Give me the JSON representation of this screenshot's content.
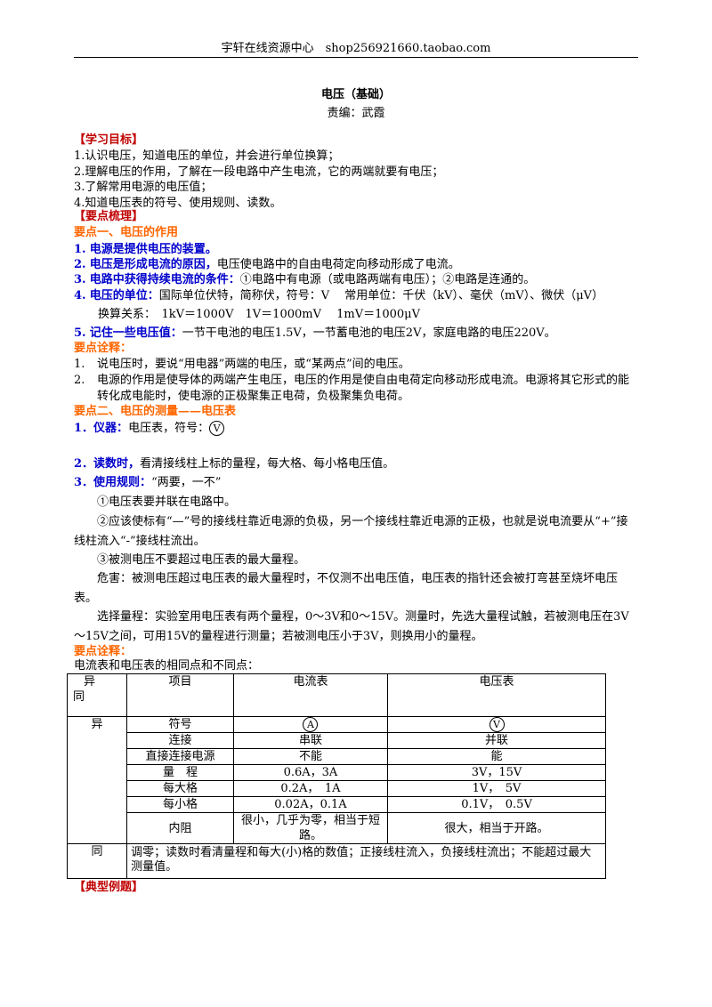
{
  "header": {
    "text": "宇轩在线资源中心　shop256921660.taobao.com"
  },
  "title": "电压（基础）",
  "author": "责编：武霞",
  "goals": {
    "heading": "【学习目标】",
    "items": [
      "1.认识电压，知道电压的单位，并会进行单位换算；",
      "2.理解电压的作用，了解在一段电路中产生电流，它的两端就要有电压；",
      "3.了解常用电源的电压值；",
      "4.知道电压表的符号、使用规则、读数。"
    ]
  },
  "points_heading": "【要点梳理】",
  "point1": {
    "heading": "要点一、电压的作用",
    "items": [
      {
        "num": "1.",
        "label": "电源是提供电压的装置。",
        "text": ""
      },
      {
        "num": "2.",
        "label": "电压是形成电流的原因，",
        "text": "电压使电路中的自由电荷定向移动形成了电流。"
      },
      {
        "num": "3.",
        "label": "电路中获得持续电流的条件：",
        "text": "①电路中有电源（或电路两端有电压）；②电路是连通的。"
      },
      {
        "num": "4.",
        "label": "电压的单位：",
        "text": "国际单位伏特，简称伏，符号：V　 常用单位：千伏（kV）、毫伏（mV）、微伏（μV）"
      },
      {
        "num": "5.",
        "label": "记住一些电压值：",
        "text": "一节干电池的电压1.5V，一节蓄电池的电压2V，家庭电路的电压220V。"
      }
    ],
    "conversion": "换算关系：　1kV＝1000V　1V＝1000mV　 1mV＝1000μV"
  },
  "note1": {
    "heading": "要点诠释：",
    "items": [
      {
        "num": "1.",
        "text": "说电压时，要说“用电器”两端的电压，或“某两点”间的电压。"
      },
      {
        "num": "2.",
        "text": "电源的作用是使导体的两端产生电压，电压的作用是使自由电荷定向移动形成电流。电源将其它形式的能转化成电能时，使电源的正极聚集正电荷，负极聚集负电荷。"
      }
    ]
  },
  "point2": {
    "heading": "要点二、电压的测量——电压表",
    "items": [
      {
        "num": "1．",
        "label": "仪器：",
        "text": "电压表，符号：",
        "symbol": "V"
      },
      {
        "num": "2．",
        "label": "读数时，",
        "text": "看清接线柱上标的量程，每大格、每小格电压值。"
      },
      {
        "num": "3．",
        "label": "使用规则：",
        "text": "“两要，一不”"
      }
    ],
    "paragraphs": [
      "①电压表要并联在电路中。",
      "②应该使标有“—”号的接线柱靠近电源的负极，另一个接线柱靠近电源的正极，也就是说电流要从“+”接线柱流入“-”接线柱流出。",
      "③被测电压不要超过电压表的最大量程。",
      "危害：被测电压超过电压表的最大量程时，不仅测不出电压值，电压表的指针还会被打弯甚至烧坏电压表。",
      "选择量程：实验室用电压表有两个量程，0～3V和0～15V。测量时，先选大量程试触，若被测电压在3V～15V之间，可用15V的量程进行测量；若被测电压小于3V，则换用小的量程。"
    ]
  },
  "note2": {
    "heading": "要点诠释：",
    "intro": "电流表和电压表的相同点和不同点："
  },
  "table": {
    "corner": [
      "异",
      "同"
    ],
    "columns": [
      "项目",
      "电流表",
      "电压表"
    ],
    "diff_label": "异",
    "rows": [
      [
        "符号",
        "A",
        "V"
      ],
      [
        "连接",
        "串联",
        "并联"
      ],
      [
        "直接连接电源",
        "不能",
        "能"
      ],
      [
        "量　程",
        "0.6A，3A",
        "3V，15V"
      ],
      [
        "每大格",
        "0.2A，　1A",
        "1V，　5V"
      ],
      [
        "每小格",
        "0.02A，0.1A",
        "0.1V，　0.5V"
      ],
      [
        "内阻",
        "很小，几乎为零，相当于短路。",
        "很大，相当于开路。"
      ]
    ],
    "same_label": "同",
    "same_text": "调零；读数时看清量程和每大(小)格的数值；正接线柱流入，负接线柱流出；不能超过最大测量值。"
  },
  "examples_heading": "【典型例题】"
}
